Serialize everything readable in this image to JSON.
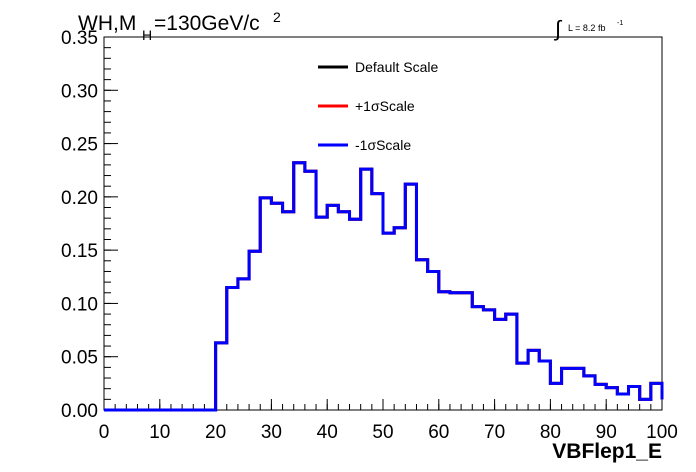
{
  "chart_data": {
    "type": "line",
    "title": "WH,M",
    "title_subscript": "H",
    "title_rest": "=130GeV/c",
    "title_superscript": "2",
    "lumi_symbol": "∫",
    "lumi_label": "L = 8.2 fb",
    "lumi_superscript": "-1",
    "xlabel": "VBFlep1_E",
    "ylabel": "",
    "xlim": [
      0,
      100
    ],
    "ylim": [
      0,
      0.35
    ],
    "x_ticks": [
      "0",
      "10",
      "20",
      "30",
      "40",
      "50",
      "60",
      "70",
      "80",
      "90",
      "100"
    ],
    "y_ticks": [
      "0.00",
      "0.05",
      "0.10",
      "0.15",
      "0.20",
      "0.25",
      "0.30",
      "0.35"
    ],
    "grid": false,
    "legend_position": "top-center",
    "bin_edges": [
      0,
      2,
      4,
      6,
      8,
      10,
      12,
      14,
      16,
      18,
      20,
      22,
      24,
      26,
      28,
      30,
      32,
      34,
      36,
      38,
      40,
      42,
      44,
      46,
      48,
      50,
      52,
      54,
      56,
      58,
      60,
      62,
      64,
      66,
      68,
      70,
      72,
      74,
      76,
      78,
      80,
      82,
      84,
      86,
      88,
      90,
      92,
      94,
      96,
      98,
      100
    ],
    "series": [
      {
        "name": "Default Scale",
        "color": "#000000",
        "values": [
          0,
          0,
          0,
          0,
          0,
          0,
          0,
          0,
          0,
          0,
          0.063,
          0.115,
          0.123,
          0.149,
          0.199,
          0.194,
          0.186,
          0.232,
          0.224,
          0.181,
          0.192,
          0.186,
          0.179,
          0.226,
          0.203,
          0.166,
          0.171,
          0.212,
          0.141,
          0.13,
          0.111,
          0.11,
          0.11,
          0.097,
          0.094,
          0.085,
          0.09,
          0.044,
          0.056,
          0.046,
          0.025,
          0.039,
          0.039,
          0.032,
          0.024,
          0.021,
          0.015,
          0.022,
          0.01,
          0.025,
          0.01
        ]
      },
      {
        "name": "+1σScale",
        "color": "#ff0000",
        "values": [
          0,
          0,
          0,
          0,
          0,
          0,
          0,
          0,
          0,
          0,
          0.063,
          0.115,
          0.123,
          0.149,
          0.199,
          0.194,
          0.186,
          0.232,
          0.224,
          0.181,
          0.192,
          0.186,
          0.179,
          0.226,
          0.203,
          0.166,
          0.171,
          0.212,
          0.141,
          0.13,
          0.111,
          0.11,
          0.11,
          0.097,
          0.094,
          0.085,
          0.09,
          0.044,
          0.056,
          0.046,
          0.025,
          0.039,
          0.039,
          0.032,
          0.024,
          0.021,
          0.015,
          0.022,
          0.01,
          0.025,
          0.01
        ]
      },
      {
        "name": "-1σScale",
        "color": "#0000ff",
        "values": [
          0,
          0,
          0,
          0,
          0,
          0,
          0,
          0,
          0,
          0,
          0.063,
          0.115,
          0.123,
          0.149,
          0.199,
          0.194,
          0.186,
          0.232,
          0.224,
          0.181,
          0.192,
          0.186,
          0.179,
          0.226,
          0.203,
          0.166,
          0.171,
          0.212,
          0.141,
          0.13,
          0.111,
          0.11,
          0.11,
          0.097,
          0.094,
          0.085,
          0.09,
          0.044,
          0.056,
          0.046,
          0.025,
          0.039,
          0.039,
          0.032,
          0.024,
          0.021,
          0.015,
          0.022,
          0.01,
          0.025,
          0.01
        ]
      }
    ]
  }
}
